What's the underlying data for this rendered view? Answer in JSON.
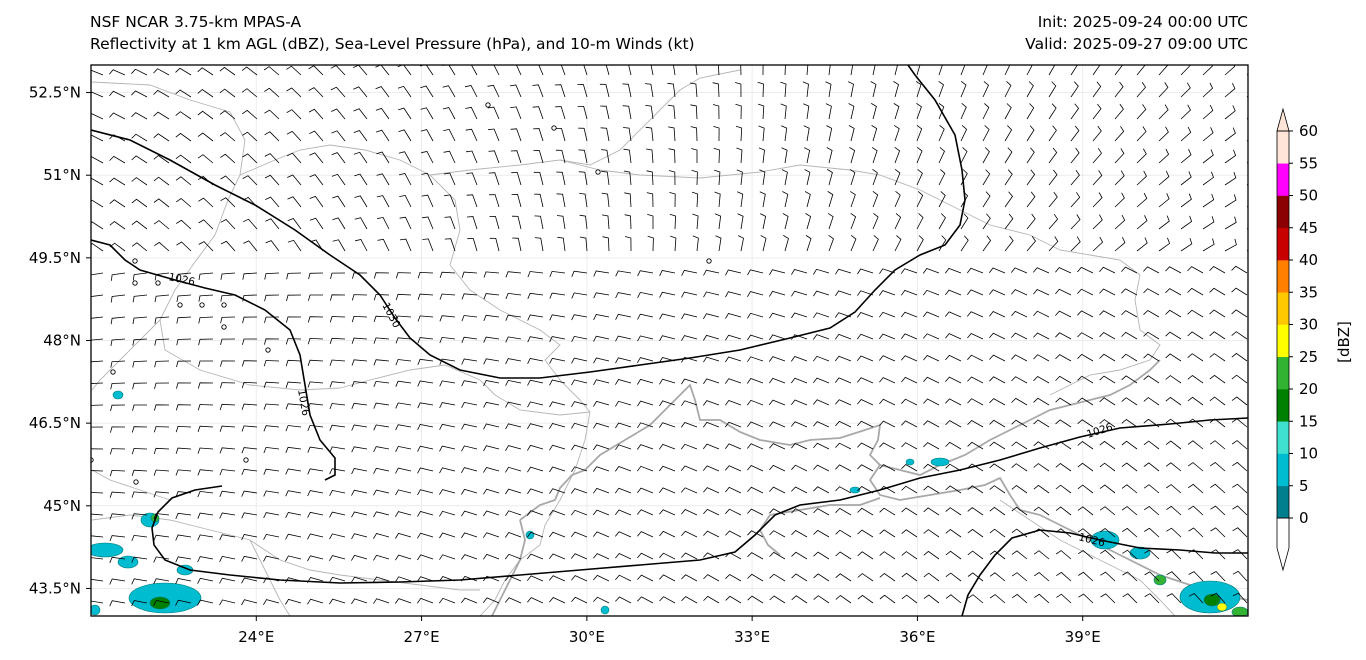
{
  "header": {
    "title_line1": "NSF NCAR 3.75-km MPAS-A",
    "title_line2": "Reflectivity at 1 km AGL (dBZ), Sea-Level Pressure (hPa), and 10-m Winds (kt)",
    "init": "Init: 2025-09-24 00:00 UTC",
    "valid": "Valid: 2025-09-27 09:00 UTC"
  },
  "map": {
    "lon_range": [
      21,
      42
    ],
    "lat_range": [
      43,
      53
    ],
    "lat_ticks": [
      {
        "value": 52.5,
        "label": "52.5°N"
      },
      {
        "value": 51,
        "label": "51°N"
      },
      {
        "value": 49.5,
        "label": "49.5°N"
      },
      {
        "value": 48,
        "label": "48°N"
      },
      {
        "value": 46.5,
        "label": "46.5°N"
      },
      {
        "value": 45,
        "label": "45°N"
      },
      {
        "value": 43.5,
        "label": "43.5°N"
      }
    ],
    "lon_ticks": [
      {
        "value": 24,
        "label": "24°E"
      },
      {
        "value": 27,
        "label": "27°E"
      },
      {
        "value": 30,
        "label": "30°E"
      },
      {
        "value": 33,
        "label": "33°E"
      },
      {
        "value": 36,
        "label": "36°E"
      },
      {
        "value": 39,
        "label": "39°E"
      }
    ],
    "isobar_labels": [
      "1026",
      "1030",
      "1026",
      "1026",
      "1026"
    ],
    "colors": {
      "isobar": "#000000",
      "border": "#aaaaaa",
      "coast": "#999999",
      "barb": "#000000"
    }
  },
  "colorbar": {
    "label": "[dBZ]",
    "ticks": [
      "0",
      "5",
      "10",
      "15",
      "20",
      "25",
      "30",
      "35",
      "40",
      "45",
      "50",
      "55",
      "60"
    ],
    "colors": [
      "#ffffff",
      "#00808f",
      "#00bcd0",
      "#40e0d0",
      "#008000",
      "#32b432",
      "#ffff00",
      "#ffc800",
      "#ff7f00",
      "#c80000",
      "#8b0000",
      "#ff00ff",
      "#ffe4d8"
    ]
  }
}
